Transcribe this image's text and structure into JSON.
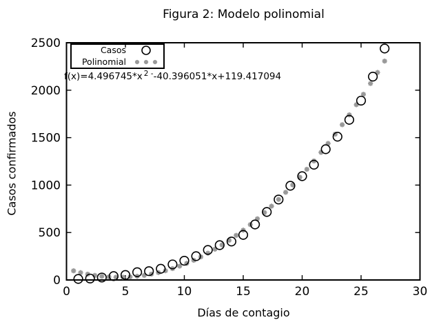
{
  "figure": {
    "title": "Figura 2: Modelo polinomial",
    "x_axis": {
      "label": "Días de contagio",
      "ticks": [
        0,
        5,
        10,
        15,
        20,
        25,
        30
      ],
      "range": [
        0,
        30
      ]
    },
    "y_axis": {
      "label": "Casos confirmados",
      "ticks": [
        0,
        500,
        1000,
        1500,
        2000,
        2500
      ],
      "range": [
        0,
        2500
      ]
    },
    "legend": {
      "items": [
        {
          "label": "Casos",
          "marker": "open-circle",
          "color": "#000000"
        },
        {
          "label": "Polinomial",
          "marker": "asterisk",
          "color": "#999999"
        }
      ]
    },
    "equation": {
      "prefix": "f(x)=4.496745*x",
      "superscript": "2 -",
      "suffix": "-40.396051*x+119.417094"
    }
  },
  "chart_data": {
    "type": "scatter",
    "title": "Figura 2: Modelo polinomial",
    "xlabel": "Días de contagio",
    "ylabel": "Casos confirmados",
    "xlim": [
      0,
      30
    ],
    "ylim": [
      0,
      2500
    ],
    "grid": false,
    "legend_position": "top-left",
    "series": [
      {
        "name": "Casos",
        "marker": "open-circle",
        "color": "#000000",
        "x": [
          1,
          2,
          3,
          4,
          5,
          6,
          7,
          8,
          9,
          10,
          11,
          12,
          13,
          14,
          15,
          16,
          17,
          18,
          19,
          20,
          21,
          22,
          23,
          24,
          25,
          26,
          27
        ],
        "y": [
          11,
          15,
          26,
          41,
          53,
          82,
          93,
          118,
          164,
          203,
          251,
          316,
          367,
          405,
          475,
          585,
          717,
          848,
          993,
          1094,
          1215,
          1378,
          1510,
          1688,
          1890,
          2143,
          2439
        ]
      },
      {
        "name": "Polinomial",
        "marker": "asterisk",
        "color": "#999999",
        "fit": {
          "type": "polynomial",
          "degree": 2,
          "coefficients": {
            "a": 4.496745,
            "b": -40.396051,
            "c": 119.417094
          }
        },
        "x_start": 0.6,
        "x_step": 0.6,
        "x_end": 27.0
      }
    ]
  }
}
